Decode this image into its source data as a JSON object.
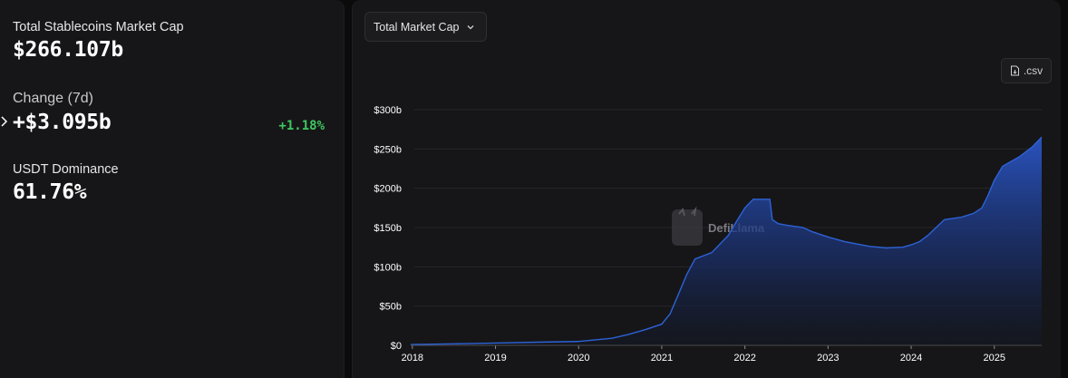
{
  "stats": {
    "market_cap_label": "Total Stablecoins Market Cap",
    "market_cap_value": "$266.107b",
    "change_label": "Change (7d)",
    "change_value": "+$3.095b",
    "change_pct": "+1.18%",
    "dominance_label": "USDT Dominance",
    "dominance_value": "61.76%"
  },
  "controls": {
    "select_label": "Total Market Cap",
    "csv_label": ".csv"
  },
  "watermark": "DefiLlama",
  "colors": {
    "line": "#2d62d6",
    "positive": "#3fc860",
    "panel": "#161618"
  },
  "chart_data": {
    "type": "area",
    "title": "",
    "xlabel": "",
    "ylabel": "",
    "ylim": [
      0,
      300
    ],
    "y_unit": "b",
    "yticks": [
      "$0",
      "$50b",
      "$100b",
      "$150b",
      "$200b",
      "$250b",
      "$300b"
    ],
    "xticks": [
      "2018",
      "2019",
      "2020",
      "2021",
      "2022",
      "2023",
      "2024",
      "2025"
    ],
    "grid": true,
    "series": [
      {
        "x": [
          2017.98,
          2018.5,
          2019.0,
          2019.5,
          2020.0,
          2020.2,
          2020.4,
          2020.6,
          2020.8,
          2021.0,
          2021.1,
          2021.2,
          2021.3,
          2021.4,
          2021.6,
          2021.8,
          2021.9,
          2022.0,
          2022.1,
          2022.2,
          2022.3,
          2022.33,
          2022.4,
          2022.5,
          2022.7,
          2022.8,
          2023.0,
          2023.2,
          2023.5,
          2023.7,
          2023.9,
          2024.0,
          2024.1,
          2024.2,
          2024.4,
          2024.6,
          2024.75,
          2024.85,
          2024.92,
          2025.0,
          2025.1,
          2025.3,
          2025.45,
          2025.57
        ],
        "values": [
          1,
          2,
          3,
          4,
          5,
          7,
          9,
          14,
          20,
          27,
          40,
          65,
          90,
          110,
          118,
          140,
          158,
          175,
          186,
          186,
          186,
          160,
          155,
          153,
          150,
          145,
          138,
          132,
          126,
          124,
          125,
          128,
          132,
          140,
          160,
          163,
          168,
          175,
          190,
          210,
          228,
          240,
          252,
          265
        ]
      }
    ]
  }
}
